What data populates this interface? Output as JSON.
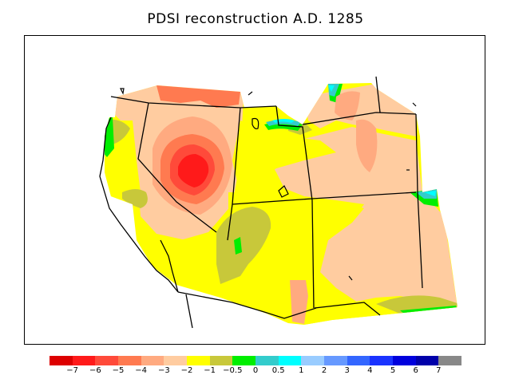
{
  "title": "PDSI reconstruction A.D. 1285",
  "legend": {
    "colors": [
      "#dd0000",
      "#ff1a1a",
      "#ff4a3a",
      "#ff7a50",
      "#ffaa80",
      "#ffcca0",
      "#ffff00",
      "#c8c83a",
      "#00ee00",
      "#33cccc",
      "#00ffff",
      "#99ccff",
      "#6699ff",
      "#3366ff",
      "#1a33ff",
      "#0000dd",
      "#0000aa",
      "#888888"
    ],
    "labels": [
      "−7",
      "−6",
      "−5",
      "−4",
      "−3",
      "−2",
      "−1",
      "−0.5",
      "0",
      "0.5",
      "1",
      "2",
      "3",
      "4",
      "5",
      "6",
      "7"
    ]
  },
  "palette": {
    "light_peach": "#ffcca0",
    "peach": "#ffaa80",
    "orange": "#ff7a50",
    "red_orange": "#ff4a3a",
    "red": "#ff1a1a",
    "yellow": "#ffff00",
    "olive": "#c8c83a",
    "green": "#00ee00",
    "teal": "#33cccc",
    "cyan": "#00ffff"
  }
}
